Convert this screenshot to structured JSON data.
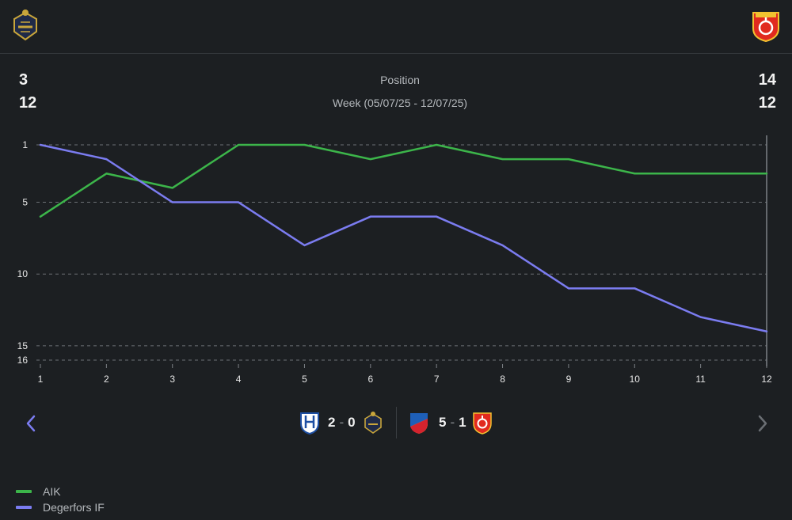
{
  "header": {
    "home_team": "AIK",
    "away_team": "Degerfors IF",
    "home_logo_icon": "aik-crest-icon",
    "away_logo_icon": "degerfors-crest-icon"
  },
  "stats": {
    "home_position": "3",
    "home_played": "12",
    "away_position": "14",
    "away_played": "12",
    "metric_label": "Position",
    "week_label": "Week (05/07/25 - 12/07/25)"
  },
  "matches": [
    {
      "home": "Halmstads BK",
      "away": "AIK",
      "home_score": "2",
      "away_score": "0",
      "separator": "-"
    },
    {
      "home": "Djurgårdens IF",
      "away": "Degerfors IF",
      "home_score": "5",
      "away_score": "1",
      "separator": "-"
    }
  ],
  "legend": [
    {
      "label": "AIK",
      "color": "#3cb54a"
    },
    {
      "label": "Degerfors IF",
      "color": "#7b7cf0"
    }
  ],
  "chart_data": {
    "type": "line",
    "title": "Position",
    "xlabel": "",
    "ylabel": "",
    "x": [
      1,
      2,
      3,
      4,
      5,
      6,
      7,
      8,
      9,
      10,
      11,
      12
    ],
    "y_ticks": [
      1,
      5,
      10,
      15,
      16
    ],
    "ylim": [
      1,
      16
    ],
    "y_inverted": true,
    "grid": "dashed-horizontal",
    "series": [
      {
        "name": "AIK",
        "color": "#3cb54a",
        "values": [
          6,
          3,
          4,
          1,
          1,
          2,
          1,
          2,
          2,
          3,
          3,
          3
        ]
      },
      {
        "name": "Degerfors IF",
        "color": "#7b7cf0",
        "values": [
          1,
          2,
          5,
          5,
          8,
          6,
          6,
          8,
          11,
          11,
          13,
          14
        ]
      }
    ]
  }
}
